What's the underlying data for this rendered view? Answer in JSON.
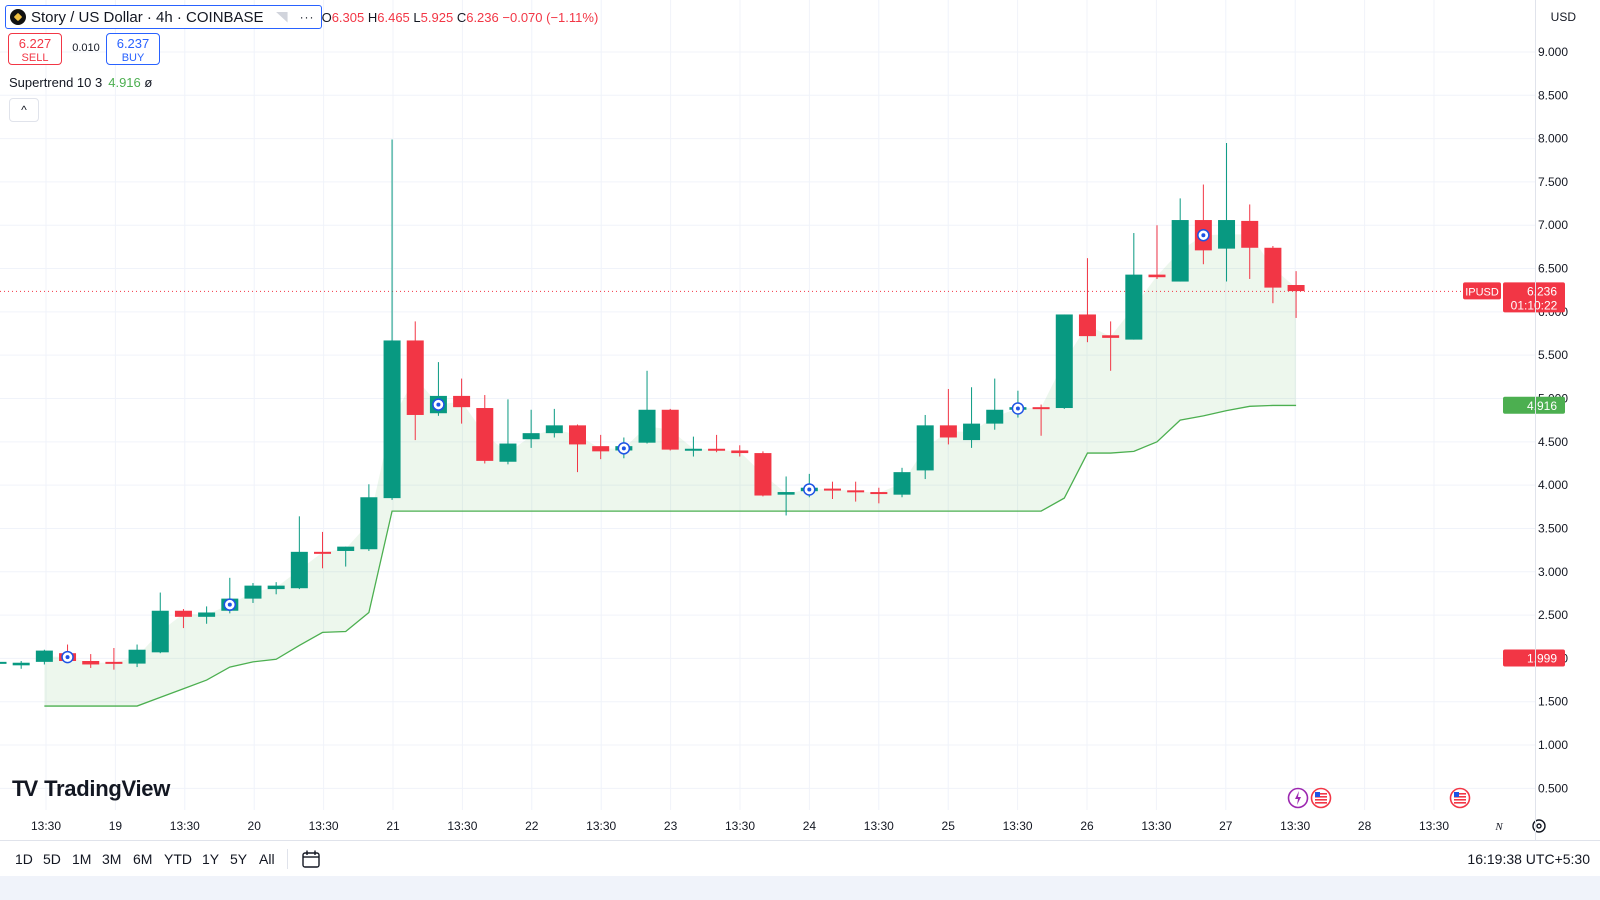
{
  "header": {
    "symbol_title": "Story / US Dollar · 4h · COINBASE",
    "more_label": "···",
    "ohlc": {
      "o_label": "O",
      "o": "6.305",
      "h_label": "H",
      "h": "6.465",
      "l_label": "L",
      "l": "5.925",
      "c_label": "C",
      "c": "6.236",
      "change": "−0.070 (−1.11%)"
    },
    "sell": {
      "price": "6.227",
      "label": "SELL"
    },
    "spread": "0.010",
    "buy": {
      "price": "6.237",
      "label": "BUY"
    },
    "indicator": {
      "name": "Supertrend 10 3",
      "value": "4.916",
      "extra": "ø"
    },
    "collapse_icon": "chevron-up-icon"
  },
  "price_axis": {
    "currency": "USD",
    "ticks": [
      "0.500",
      "1.000",
      "1.500",
      "2.000",
      "2.500",
      "3.000",
      "3.500",
      "4.000",
      "4.500",
      "5.000",
      "5.500",
      "6.000",
      "6.500",
      "7.000",
      "7.500",
      "8.000",
      "8.500",
      "9.000"
    ],
    "last_price": {
      "symbol": "IPUSD",
      "price": "6.236",
      "countdown": "01:10:22",
      "color": "#f23645"
    },
    "supertrend_label": {
      "price": "4.916",
      "color": "#4caf50"
    },
    "low_label": {
      "price": "1.999",
      "color": "#f23645"
    }
  },
  "time_axis": {
    "labels": [
      "13:30",
      "19",
      "13:30",
      "20",
      "13:30",
      "21",
      "13:30",
      "22",
      "13:30",
      "23",
      "13:30",
      "24",
      "13:30",
      "25",
      "13:30",
      "26",
      "13:30",
      "27",
      "13:30",
      "28",
      "13:30"
    ],
    "scale_icon": "log-toggle-icon",
    "settings_icon": "gear-icon"
  },
  "toolbar": {
    "ranges": [
      "1D",
      "5D",
      "1M",
      "3M",
      "6M",
      "YTD",
      "1Y",
      "5Y",
      "All"
    ],
    "calendar_icon": "calendar-icon",
    "clock": "16:19:38 UTC+5:30"
  },
  "branding": {
    "logo_text": "TradingView",
    "logo_mark": "TV"
  },
  "event_icons": [
    "lightning-icon",
    "us-flag-icon",
    "us-flag-icon"
  ],
  "colors": {
    "up": "#089981",
    "down": "#f23645",
    "supertrend": "#4caf50",
    "fill": "rgba(76,175,80,0.10)",
    "grid": "#f0f3fa",
    "accent": "#2962ff"
  },
  "chart_data": {
    "type": "candlestick",
    "title": "Story / US Dollar · 4h · COINBASE",
    "ylim": [
      0.25,
      9.6
    ],
    "grid": true,
    "scale": "linear",
    "x_labels": [
      "13:30",
      "19",
      "13:30",
      "20",
      "13:30",
      "21",
      "13:30",
      "22",
      "13:30",
      "23",
      "13:30",
      "24",
      "13:30",
      "25",
      "13:30",
      "26",
      "13:30",
      "27",
      "13:30",
      "28",
      "13:30"
    ],
    "candles": [
      {
        "o": 1.96,
        "h": 2.02,
        "l": 1.91,
        "c": 1.96
      },
      {
        "o": 1.92,
        "h": 1.97,
        "l": 1.88,
        "c": 1.95
      },
      {
        "o": 1.96,
        "h": 2.1,
        "l": 1.93,
        "c": 2.09
      },
      {
        "o": 2.06,
        "h": 2.16,
        "l": 1.95,
        "c": 1.97
      },
      {
        "o": 1.97,
        "h": 2.05,
        "l": 1.89,
        "c": 1.93
      },
      {
        "o": 1.96,
        "h": 2.12,
        "l": 1.87,
        "c": 1.94
      },
      {
        "o": 1.94,
        "h": 2.16,
        "l": 1.9,
        "c": 2.1
      },
      {
        "o": 2.07,
        "h": 2.76,
        "l": 2.06,
        "c": 2.55
      },
      {
        "o": 2.55,
        "h": 2.57,
        "l": 2.35,
        "c": 2.48
      },
      {
        "o": 2.48,
        "h": 2.6,
        "l": 2.4,
        "c": 2.53
      },
      {
        "o": 2.55,
        "h": 2.93,
        "l": 2.52,
        "c": 2.69
      },
      {
        "o": 2.69,
        "h": 2.87,
        "l": 2.64,
        "c": 2.84
      },
      {
        "o": 2.8,
        "h": 2.88,
        "l": 2.74,
        "c": 2.84
      },
      {
        "o": 2.81,
        "h": 3.64,
        "l": 2.8,
        "c": 3.23
      },
      {
        "o": 3.23,
        "h": 3.46,
        "l": 3.04,
        "c": 3.22
      },
      {
        "o": 3.24,
        "h": 3.29,
        "l": 3.06,
        "c": 3.29
      },
      {
        "o": 3.26,
        "h": 4.01,
        "l": 3.24,
        "c": 3.86
      },
      {
        "o": 3.85,
        "h": 7.99,
        "l": 3.83,
        "c": 5.67
      },
      {
        "o": 5.67,
        "h": 5.89,
        "l": 4.52,
        "c": 4.81
      },
      {
        "o": 4.83,
        "h": 5.42,
        "l": 4.8,
        "c": 5.03
      },
      {
        "o": 5.03,
        "h": 5.23,
        "l": 4.71,
        "c": 4.9
      },
      {
        "o": 4.89,
        "h": 5.04,
        "l": 4.25,
        "c": 4.28
      },
      {
        "o": 4.27,
        "h": 4.99,
        "l": 4.24,
        "c": 4.48
      },
      {
        "o": 4.53,
        "h": 4.87,
        "l": 4.43,
        "c": 4.6
      },
      {
        "o": 4.6,
        "h": 4.88,
        "l": 4.55,
        "c": 4.69
      },
      {
        "o": 4.69,
        "h": 4.7,
        "l": 4.15,
        "c": 4.47
      },
      {
        "o": 4.45,
        "h": 4.58,
        "l": 4.3,
        "c": 4.39
      },
      {
        "o": 4.4,
        "h": 4.55,
        "l": 4.31,
        "c": 4.45
      },
      {
        "o": 4.49,
        "h": 5.32,
        "l": 4.48,
        "c": 4.87
      },
      {
        "o": 4.87,
        "h": 4.88,
        "l": 4.4,
        "c": 4.41
      },
      {
        "o": 4.42,
        "h": 4.56,
        "l": 4.33,
        "c": 4.42
      },
      {
        "o": 4.42,
        "h": 4.58,
        "l": 4.38,
        "c": 4.4
      },
      {
        "o": 4.4,
        "h": 4.46,
        "l": 4.33,
        "c": 4.37
      },
      {
        "o": 4.37,
        "h": 4.39,
        "l": 3.87,
        "c": 3.88
      },
      {
        "o": 3.89,
        "h": 4.1,
        "l": 3.65,
        "c": 3.92
      },
      {
        "o": 3.93,
        "h": 4.13,
        "l": 3.86,
        "c": 3.97
      },
      {
        "o": 3.96,
        "h": 4.04,
        "l": 3.84,
        "c": 3.95
      },
      {
        "o": 3.94,
        "h": 4.04,
        "l": 3.81,
        "c": 3.92
      },
      {
        "o": 3.92,
        "h": 3.97,
        "l": 3.79,
        "c": 3.9
      },
      {
        "o": 3.89,
        "h": 4.2,
        "l": 3.86,
        "c": 4.15
      },
      {
        "o": 4.17,
        "h": 4.81,
        "l": 4.07,
        "c": 4.69
      },
      {
        "o": 4.69,
        "h": 5.11,
        "l": 4.47,
        "c": 4.55
      },
      {
        "o": 4.52,
        "h": 5.13,
        "l": 4.43,
        "c": 4.71
      },
      {
        "o": 4.71,
        "h": 5.23,
        "l": 4.64,
        "c": 4.87
      },
      {
        "o": 4.87,
        "h": 5.09,
        "l": 4.78,
        "c": 4.9
      },
      {
        "o": 4.9,
        "h": 4.93,
        "l": 4.57,
        "c": 4.89
      },
      {
        "o": 4.89,
        "h": 5.97,
        "l": 4.88,
        "c": 5.97
      },
      {
        "o": 5.97,
        "h": 6.62,
        "l": 5.65,
        "c": 5.72
      },
      {
        "o": 5.73,
        "h": 5.89,
        "l": 5.32,
        "c": 5.7
      },
      {
        "o": 5.68,
        "h": 6.91,
        "l": 5.68,
        "c": 6.43
      },
      {
        "o": 6.43,
        "h": 7.0,
        "l": 6.38,
        "c": 6.4
      },
      {
        "o": 6.35,
        "h": 7.31,
        "l": 6.35,
        "c": 7.06
      },
      {
        "o": 7.06,
        "h": 7.47,
        "l": 6.55,
        "c": 6.71
      },
      {
        "o": 6.73,
        "h": 7.95,
        "l": 6.35,
        "c": 7.06
      },
      {
        "o": 7.05,
        "h": 7.24,
        "l": 6.38,
        "c": 6.74
      },
      {
        "o": 6.74,
        "h": 6.76,
        "l": 6.1,
        "c": 6.28
      },
      {
        "o": 6.31,
        "h": 6.47,
        "l": 5.93,
        "c": 6.24
      }
    ],
    "supertrend": [
      null,
      null,
      1.45,
      1.45,
      1.45,
      1.45,
      1.45,
      1.55,
      1.65,
      1.75,
      1.9,
      1.96,
      1.99,
      2.15,
      2.3,
      2.31,
      2.53,
      3.7,
      3.7,
      3.7,
      3.7,
      3.7,
      3.7,
      3.7,
      3.7,
      3.7,
      3.7,
      3.7,
      3.7,
      3.7,
      3.7,
      3.7,
      3.7,
      3.7,
      3.7,
      3.7,
      3.7,
      3.7,
      3.7,
      3.7,
      3.7,
      3.7,
      3.7,
      3.7,
      3.7,
      3.7,
      3.85,
      4.37,
      4.37,
      4.39,
      4.5,
      4.75,
      4.8,
      4.86,
      4.91,
      4.92,
      4.92
    ],
    "markers_at": [
      3,
      10,
      19,
      27,
      35,
      44,
      52
    ],
    "current_price": 6.236
  }
}
